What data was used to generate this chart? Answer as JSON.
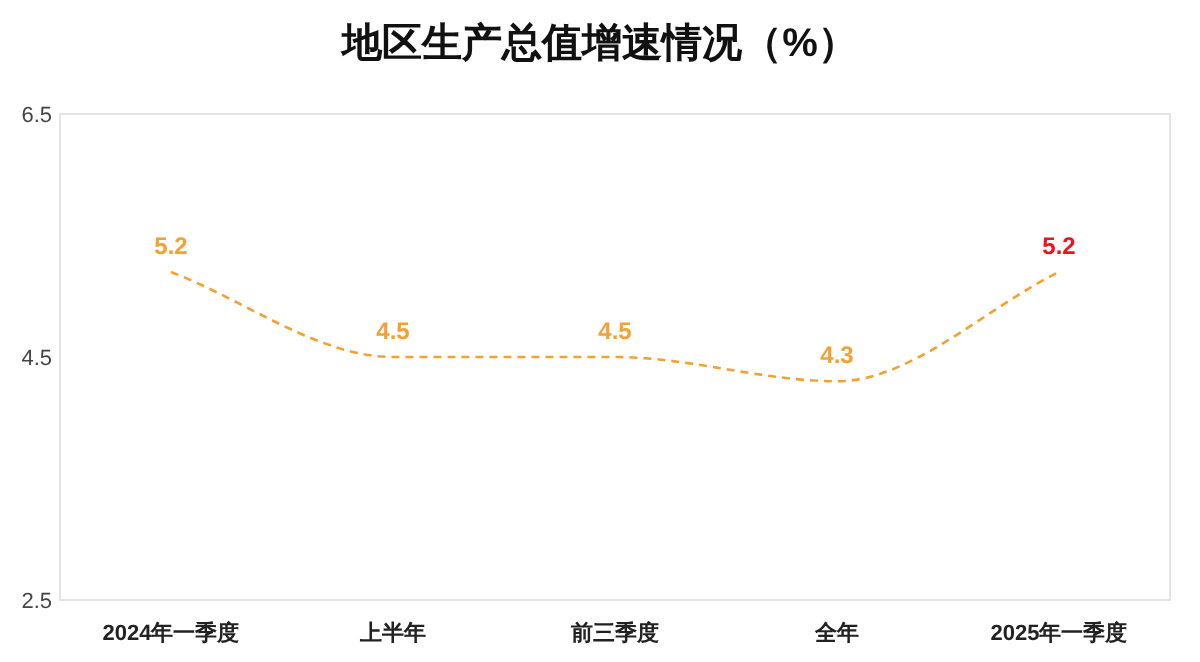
{
  "chart_data": {
    "type": "line",
    "title": "地区生产总值增速情况（%）",
    "categories": [
      "2024年一季度",
      "上半年",
      "前三季度",
      "全年",
      "2025年一季度"
    ],
    "series": [
      {
        "color": "#f5a033",
        "values": [
          5.2,
          4.5,
          4.5,
          4.3,
          5.2
        ],
        "colors": [
          "#f5a033",
          "#f5a033",
          "#f5a033",
          "#f5a033",
          "#e8141e"
        ]
      }
    ],
    "ylim": [
      2.5,
      6.5
    ],
    "yticks": [
      2.5,
      4.5,
      6.5
    ],
    "data_labels": true,
    "line_style": "dashed",
    "marker": "none",
    "grid": false
  }
}
